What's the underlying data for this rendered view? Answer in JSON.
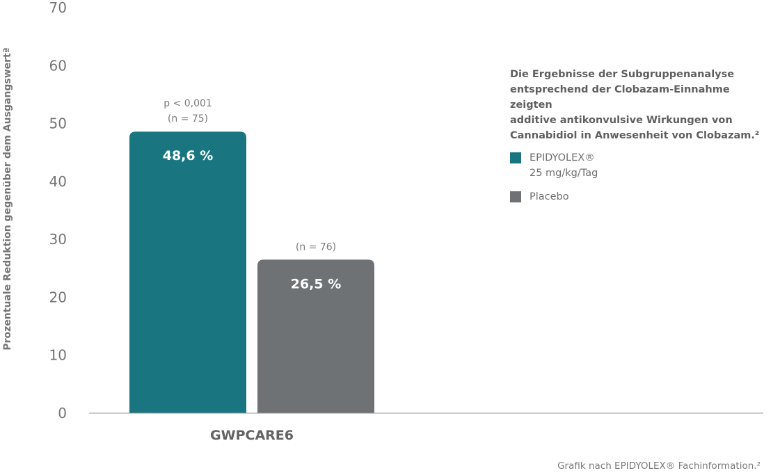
{
  "chart_data": {
    "type": "bar",
    "ylabel": "Prozentuale Reduktion gegenüber dem Ausgangswertª",
    "ylim": [
      0,
      70
    ],
    "yticks": [
      0,
      10,
      20,
      30,
      40,
      50,
      60,
      70
    ],
    "categories": [
      "GWPCARE6"
    ],
    "series": [
      {
        "name": "EPIDYOLEX®\n25 mg/kg/Tag",
        "values": [
          48.6
        ],
        "value_label": "48,6 %",
        "annotation": [
          "p < 0,001",
          "(n = 75)"
        ],
        "color": "#197681"
      },
      {
        "name": "Placebo",
        "values": [
          26.5
        ],
        "value_label": "26,5 %",
        "annotation": [
          "(n = 76)"
        ],
        "color": "#6f7274"
      }
    ],
    "legend_title": "Die Ergebnisse der Subgruppenanalyse entsprechend der Clobazam-Einnahme zeigten additive antikonvulsive Wirkungen von Cannabidiol in Anwesenheit von Clobazam.²",
    "legend_title_lines": [
      "Die Ergebnisse der Subgruppenanalyse",
      "entsprechend der Clobazam-Einnahme zeigten",
      "additive antikonvulsive Wirkungen von",
      "Cannabidiol in Anwesenheit von Clobazam.²"
    ],
    "legend_position": "right",
    "grid": false
  },
  "legend": {
    "items": [
      {
        "lines": [
          "EPIDYOLEX®",
          "25 mg/kg/Tag"
        ],
        "color": "#197681"
      },
      {
        "lines": [
          "Placebo"
        ],
        "color": "#6f7274"
      }
    ]
  },
  "source": "Grafik nach EPIDYOLEX® Fachinformation.²"
}
